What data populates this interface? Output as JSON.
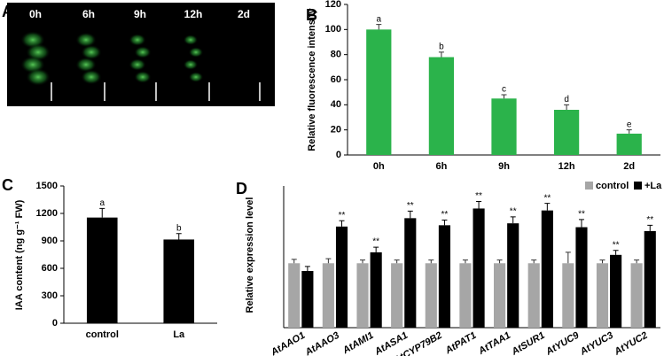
{
  "image_panel": {
    "panel": "A",
    "captions": [
      "0h",
      "6h",
      "9h",
      "12h",
      "2d"
    ]
  },
  "chart_data": [
    {
      "type": "bar",
      "panel": "B",
      "ylabel": "Relative fluorescence intensity",
      "categories": [
        "0h",
        "6h",
        "9h",
        "12h",
        "2d"
      ],
      "values": [
        100,
        78,
        45,
        36,
        17
      ],
      "errors": [
        4,
        4,
        3,
        4,
        3
      ],
      "annotations": [
        "a",
        "b",
        "c",
        "d",
        "e"
      ],
      "color": "#2bb34b",
      "ylim": [
        0,
        120
      ],
      "yticks": [
        0,
        20,
        40,
        60,
        80,
        100,
        120
      ]
    },
    {
      "type": "bar",
      "panel": "C",
      "ylabel": "IAA content (ng g⁻¹ FW)",
      "categories": [
        "control",
        "La"
      ],
      "values": [
        1155,
        915
      ],
      "errors": [
        100,
        65
      ],
      "annotations": [
        "a",
        "b"
      ],
      "color": "#000000",
      "ylim": [
        0,
        1500
      ],
      "yticks": [
        0,
        300,
        600,
        900,
        1200,
        1500
      ]
    },
    {
      "type": "grouped_bar",
      "panel": "D",
      "ylabel": "Relative expression level",
      "categories": [
        "AtAAO1",
        "AtAAO3",
        "AtAMI1",
        "AtASA1",
        "AtCYP79B2",
        "AtPAT1",
        "AtTAA1",
        "AtSUR1",
        "AtYUC9",
        "AtYUC3",
        "AtYUC2"
      ],
      "series": [
        {
          "name": "control",
          "color": "#a6a6a6",
          "values": [
            1.0,
            1.0,
            1.0,
            1.0,
            1.0,
            1.0,
            1.0,
            1.0,
            1.0,
            1.0,
            1.0
          ],
          "errors": [
            0.06,
            0.07,
            0.05,
            0.05,
            0.05,
            0.05,
            0.05,
            0.05,
            0.17,
            0.05,
            0.05
          ],
          "annotations": [
            null,
            null,
            null,
            null,
            null,
            null,
            null,
            null,
            null,
            null,
            null
          ]
        },
        {
          "name": "+La",
          "color": "#000000",
          "values": [
            0.88,
            1.57,
            1.17,
            1.7,
            1.59,
            1.85,
            1.62,
            1.82,
            1.56,
            1.13,
            1.5
          ],
          "errors": [
            0.07,
            0.09,
            0.08,
            0.11,
            0.08,
            0.11,
            0.1,
            0.11,
            0.12,
            0.07,
            0.09
          ],
          "annotations": [
            null,
            "**",
            "**",
            "**",
            "**",
            "**",
            "**",
            "**",
            "**",
            "**",
            "**"
          ]
        }
      ],
      "ylim": [
        0,
        2.2
      ],
      "legend": "upper right"
    }
  ]
}
